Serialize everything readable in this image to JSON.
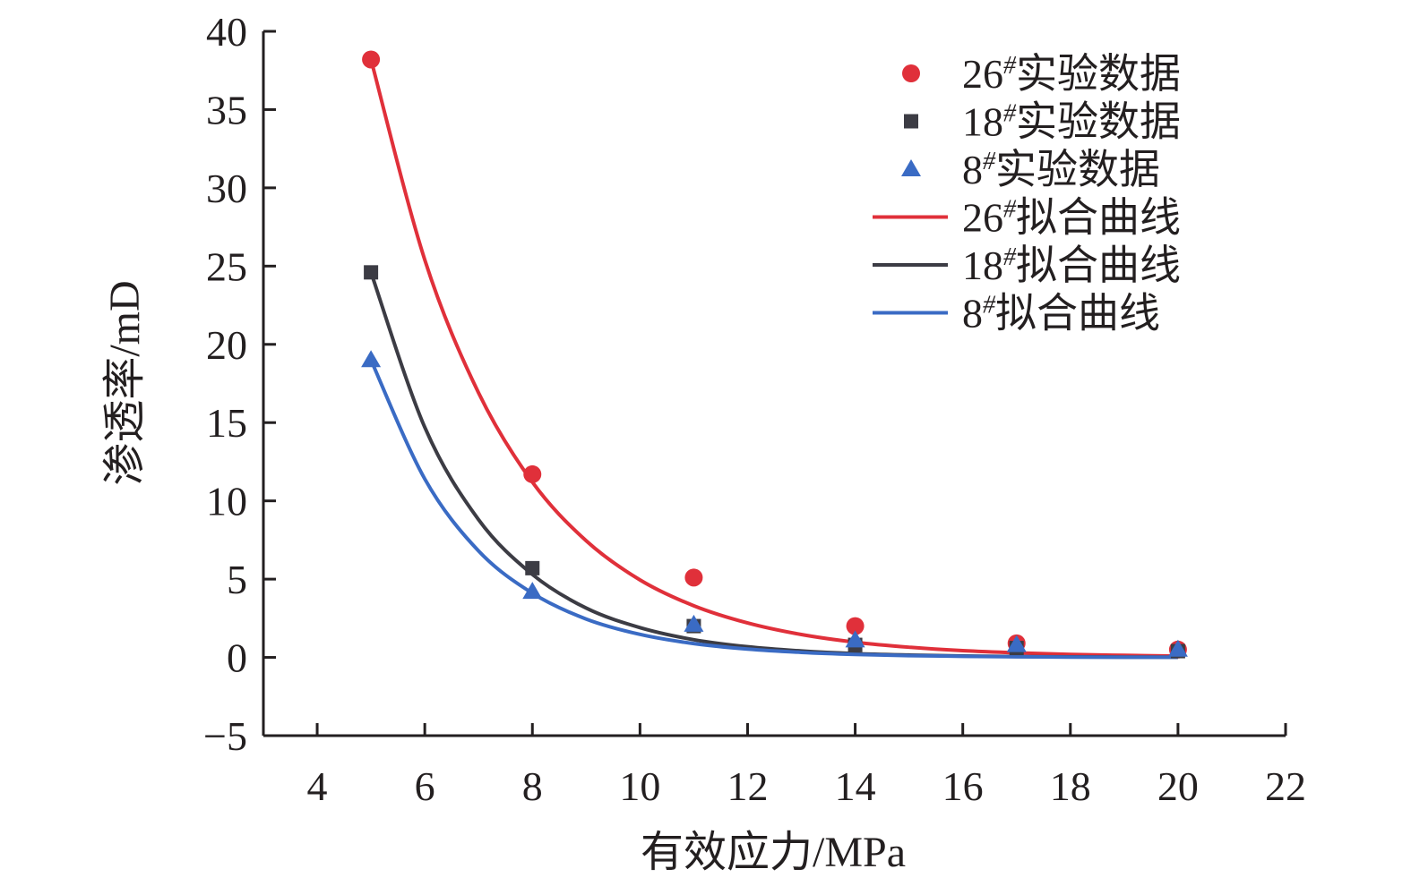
{
  "chart_data": {
    "type": "scatter",
    "xlabel": "有效应力/MPa",
    "ylabel": "渗透率/mD",
    "xlim": [
      3,
      22
    ],
    "ylim": [
      -5,
      40
    ],
    "xticks": [
      "4",
      "6",
      "8",
      "10",
      "12",
      "14",
      "16",
      "18",
      "20",
      "22"
    ],
    "yticks": [
      "−5",
      "0",
      "5",
      "10",
      "15",
      "20",
      "25",
      "30",
      "35",
      "40"
    ],
    "grid": false,
    "legend_position": "top-right",
    "series": [
      {
        "name": "26#实验数据",
        "label_main": "26",
        "label_sup": "#",
        "label_rest": "实验数据",
        "kind": "marker",
        "marker": "circle",
        "color": "#e0303a",
        "x": [
          5,
          8,
          11,
          14,
          17,
          20
        ],
        "y": [
          38.2,
          11.7,
          5.1,
          2.0,
          0.9,
          0.5
        ]
      },
      {
        "name": "18#实验数据",
        "label_main": "18",
        "label_sup": "#",
        "label_rest": "实验数据",
        "kind": "marker",
        "marker": "square",
        "color": "#3c3c44",
        "x": [
          5,
          8,
          11,
          14,
          17,
          20
        ],
        "y": [
          24.6,
          5.7,
          2.0,
          0.8,
          0.6,
          0.4
        ]
      },
      {
        "name": "8#实验数据",
        "label_main": "8",
        "label_sup": "#",
        "label_rest": "实验数据",
        "kind": "marker",
        "marker": "triangle",
        "color": "#3a6bc4",
        "x": [
          5,
          8,
          11,
          14,
          17,
          20
        ],
        "y": [
          19.0,
          4.2,
          2.1,
          1.1,
          0.8,
          0.5
        ]
      },
      {
        "name": "26#拟合曲线",
        "label_main": "26",
        "label_sup": "#",
        "label_rest": "拟合曲线",
        "kind": "line",
        "color": "#e0303a",
        "x": [
          5,
          6,
          7,
          8,
          9,
          10,
          11,
          12,
          13,
          14,
          15,
          16,
          17,
          18,
          19,
          20
        ],
        "y": [
          38.2,
          25.4,
          16.9,
          11.2,
          7.45,
          4.95,
          3.3,
          2.2,
          1.46,
          0.97,
          0.65,
          0.43,
          0.29,
          0.19,
          0.13,
          0.08
        ]
      },
      {
        "name": "18#拟合曲线",
        "label_main": "18",
        "label_sup": "#",
        "label_rest": "拟合曲线",
        "kind": "line",
        "color": "#3c3c44",
        "x": [
          5,
          6,
          7,
          8,
          9,
          10,
          11,
          12,
          13,
          14,
          15,
          16,
          17,
          18,
          19,
          20
        ],
        "y": [
          24.6,
          14.7,
          8.8,
          5.3,
          3.15,
          1.9,
          1.13,
          0.68,
          0.41,
          0.24,
          0.15,
          0.09,
          0.05,
          0.03,
          0.02,
          0.01
        ]
      },
      {
        "name": "8#拟合曲线",
        "label_main": "8",
        "label_sup": "#",
        "label_rest": "拟合曲线",
        "kind": "line",
        "color": "#3a6bc4",
        "x": [
          5,
          6,
          7,
          8,
          9,
          10,
          11,
          12,
          13,
          14,
          15,
          16,
          17,
          18,
          19,
          20
        ],
        "y": [
          19.0,
          11.4,
          6.8,
          4.1,
          2.45,
          1.47,
          0.88,
          0.53,
          0.32,
          0.19,
          0.11,
          0.07,
          0.04,
          0.02,
          0.01,
          0.01
        ]
      }
    ]
  }
}
